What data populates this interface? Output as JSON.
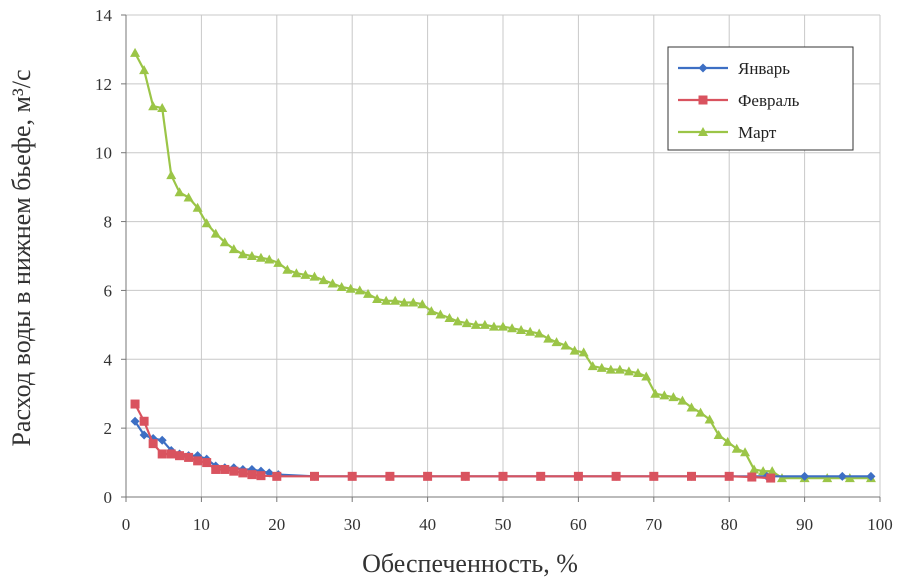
{
  "chart_data": {
    "type": "line",
    "xlabel": "Обеспеченность, %",
    "ylabel": "Расход воды в нижнем бьефе, м³/с",
    "xlim": [
      0,
      100
    ],
    "ylim": [
      0,
      14
    ],
    "xticks": [
      0,
      10,
      20,
      30,
      40,
      50,
      60,
      70,
      80,
      90,
      100
    ],
    "yticks": [
      0,
      2,
      4,
      6,
      8,
      10,
      12,
      14
    ],
    "grid": true,
    "legend_position": "top-right",
    "series": [
      {
        "name": "Январь",
        "color": "#3d6fc4",
        "marker": "diamond",
        "x": [
          1.2,
          2.4,
          3.6,
          4.8,
          6.0,
          7.1,
          8.3,
          9.5,
          10.7,
          11.9,
          13.1,
          14.3,
          15.5,
          16.7,
          17.9,
          19.0,
          20.2,
          25,
          30,
          35,
          40,
          45,
          50,
          55,
          60,
          65,
          70,
          75,
          80,
          85,
          90,
          95,
          98.8
        ],
        "values": [
          2.2,
          1.8,
          1.7,
          1.65,
          1.35,
          1.25,
          1.2,
          1.2,
          1.1,
          0.9,
          0.85,
          0.85,
          0.8,
          0.8,
          0.75,
          0.7,
          0.65,
          0.6,
          0.6,
          0.6,
          0.6,
          0.6,
          0.6,
          0.6,
          0.6,
          0.6,
          0.6,
          0.6,
          0.6,
          0.6,
          0.6,
          0.6,
          0.6
        ]
      },
      {
        "name": "Февраль",
        "color": "#d9535f",
        "marker": "square",
        "x": [
          1.2,
          2.4,
          3.6,
          4.8,
          6.0,
          7.1,
          8.3,
          9.5,
          10.7,
          11.9,
          13.1,
          14.3,
          15.5,
          16.7,
          17.9,
          20,
          25,
          30,
          35,
          40,
          45,
          50,
          55,
          60,
          65,
          70,
          75,
          80,
          83,
          85.5
        ],
        "values": [
          2.7,
          2.2,
          1.55,
          1.25,
          1.25,
          1.2,
          1.15,
          1.05,
          1.0,
          0.8,
          0.8,
          0.75,
          0.7,
          0.65,
          0.62,
          0.6,
          0.6,
          0.6,
          0.6,
          0.6,
          0.6,
          0.6,
          0.6,
          0.6,
          0.6,
          0.6,
          0.6,
          0.6,
          0.58,
          0.55
        ]
      },
      {
        "name": "Март",
        "color": "#9bc547",
        "marker": "triangle",
        "x": [
          1.2,
          2.4,
          3.6,
          4.8,
          6.0,
          7.1,
          8.3,
          9.5,
          10.7,
          11.9,
          13.1,
          14.3,
          15.5,
          16.7,
          17.9,
          19.0,
          20.2,
          21.4,
          22.6,
          23.8,
          25.0,
          26.2,
          27.4,
          28.6,
          29.8,
          31.0,
          32.1,
          33.3,
          34.5,
          35.7,
          36.9,
          38.1,
          39.3,
          40.5,
          41.7,
          42.9,
          44.0,
          45.2,
          46.4,
          47.6,
          48.8,
          50.0,
          51.2,
          52.4,
          53.6,
          54.8,
          56.0,
          57.1,
          58.3,
          59.5,
          60.7,
          61.9,
          63.1,
          64.3,
          65.5,
          66.7,
          67.9,
          69.0,
          70.2,
          71.4,
          72.6,
          73.8,
          75.0,
          76.2,
          77.4,
          78.6,
          79.8,
          81.0,
          82.1,
          83.3,
          84.5,
          85.7,
          87.0,
          90,
          93,
          96,
          98.8
        ],
        "values": [
          12.9,
          12.4,
          11.35,
          11.3,
          9.35,
          8.85,
          8.7,
          8.4,
          7.95,
          7.65,
          7.4,
          7.2,
          7.05,
          7.0,
          6.95,
          6.9,
          6.8,
          6.6,
          6.5,
          6.45,
          6.4,
          6.3,
          6.2,
          6.1,
          6.05,
          6.0,
          5.9,
          5.75,
          5.7,
          5.7,
          5.65,
          5.65,
          5.6,
          5.4,
          5.3,
          5.2,
          5.1,
          5.05,
          5.0,
          5.0,
          4.95,
          4.95,
          4.9,
          4.85,
          4.8,
          4.75,
          4.6,
          4.5,
          4.4,
          4.25,
          4.2,
          3.8,
          3.75,
          3.7,
          3.7,
          3.65,
          3.6,
          3.5,
          3.0,
          2.95,
          2.9,
          2.8,
          2.6,
          2.45,
          2.25,
          1.8,
          1.6,
          1.4,
          1.3,
          0.8,
          0.75,
          0.75,
          0.55,
          0.55,
          0.55,
          0.55,
          0.55
        ]
      }
    ]
  }
}
